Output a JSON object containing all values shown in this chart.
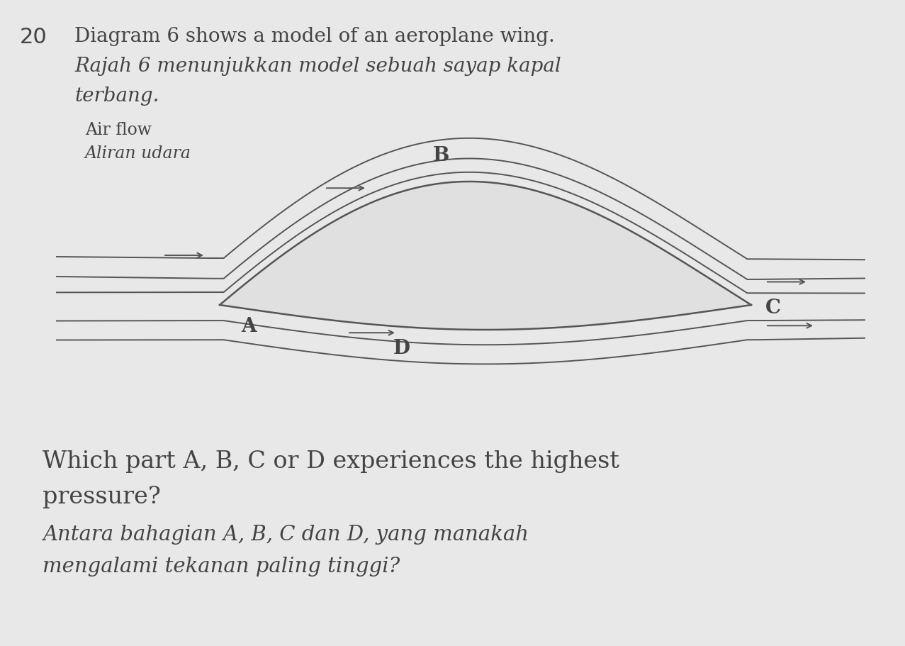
{
  "background_color": "#e8e8e8",
  "question_number": "20",
  "title_line1": "Diagram 6 shows a model of an aeroplane wing.",
  "title_line2_italic": "Rajah 6 menunjukkan model sebuah sayap kapal",
  "title_line3_italic": "terbang.",
  "airflow_label1": "Air flow",
  "airflow_label2_italic": "Aliran udara",
  "label_A": "A",
  "label_B": "B",
  "label_C": "C",
  "label_D": "D",
  "question_line1": "Which part A, B, C or D experiences the highest",
  "question_line2": "pressure?",
  "question_line3_italic": "Antara bahagian A, B, C dan D, yang manakah",
  "question_line4_italic": "mengalami tekanan paling tinggi?",
  "line_color": "#555555",
  "text_color": "#444444",
  "fig_width": 12.77,
  "fig_height": 9.11
}
